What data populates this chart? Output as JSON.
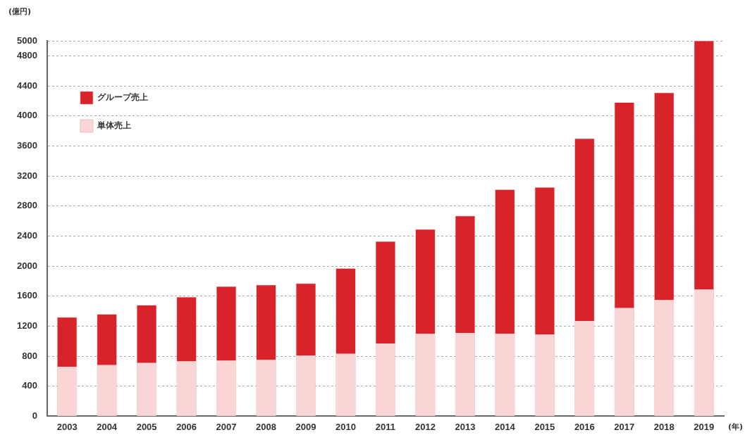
{
  "chart_data": {
    "type": "bar",
    "stacked": true,
    "ylabel": "(億円)",
    "xlabel": "(年)",
    "categories": [
      "2003",
      "2004",
      "2005",
      "2006",
      "2007",
      "2008",
      "2009",
      "2010",
      "2011",
      "2012",
      "2013",
      "2014",
      "2015",
      "2016",
      "2017",
      "2018",
      "2019"
    ],
    "series": [
      {
        "name": "単体売上",
        "color": "#f9d5d6",
        "values": [
          660,
          680,
          710,
          730,
          740,
          750,
          810,
          830,
          970,
          1100,
          1110,
          1100,
          1090,
          1270,
          1440,
          1550,
          1690
        ]
      },
      {
        "name": "グループ売上",
        "color": "#d9232b",
        "values": [
          660,
          680,
          770,
          860,
          990,
          1000,
          960,
          1140,
          1360,
          1390,
          1560,
          1920,
          1960,
          2430,
          2740,
          2760,
          3310
        ]
      }
    ],
    "ylim": [
      0,
      5000
    ],
    "yticks": [
      0,
      400,
      800,
      1200,
      1600,
      2000,
      2400,
      2800,
      3200,
      3600,
      4000,
      4400,
      4800,
      5000
    ],
    "grid": "y",
    "legend": "top left"
  }
}
